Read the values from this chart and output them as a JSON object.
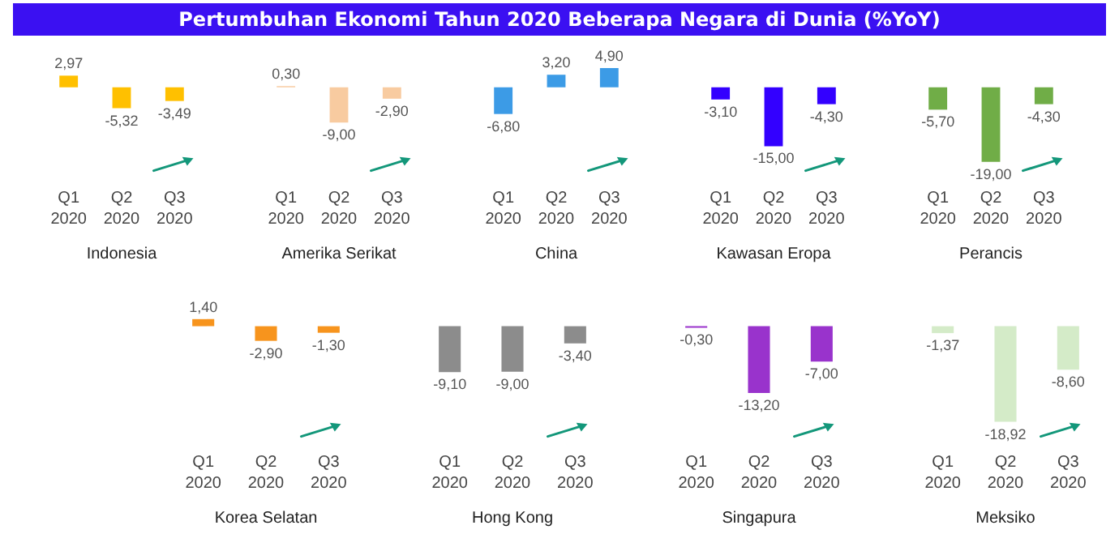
{
  "chart_data": [
    {
      "type": "bar",
      "xlabel": "Indonesia",
      "categories": [
        "Q1 2020",
        "Q2 2020",
        "Q3 2020"
      ],
      "values": [
        2.97,
        -5.32,
        -3.49
      ],
      "value_labels": [
        "2,97",
        "-5,32",
        "-3,49"
      ],
      "color": "#ffc000"
    },
    {
      "type": "bar",
      "xlabel": "Amerika Serikat",
      "categories": [
        "Q1 2020",
        "Q2 2020",
        "Q3 2020"
      ],
      "values": [
        0.3,
        -9.0,
        -2.9
      ],
      "value_labels": [
        "0,30",
        "-9,00",
        "-2,90"
      ],
      "color": "#f8cba0"
    },
    {
      "type": "bar",
      "title": "Pertumbuhan Ekonomi Tahun 2020 Beberapa Negara di Dunia (%YoY)",
      "xlabel": "China",
      "categories": [
        "Q1 2020",
        "Q2 2020",
        "Q3 2020"
      ],
      "values": [
        -6.8,
        3.2,
        4.9
      ],
      "value_labels": [
        "-6,80",
        "3,20",
        "4,90"
      ],
      "color": "#3c9be6"
    },
    {
      "type": "bar",
      "xlabel": "Kawasan Eropa",
      "categories": [
        "Q1 2020",
        "Q2 2020",
        "Q3 2020"
      ],
      "values": [
        -3.1,
        -15.0,
        -4.3
      ],
      "value_labels": [
        "-3,10",
        "-15,00",
        "-4,30"
      ],
      "color": "#3300ff"
    },
    {
      "type": "bar",
      "xlabel": "Perancis",
      "categories": [
        "Q1 2020",
        "Q2 2020",
        "Q3 2020"
      ],
      "values": [
        -5.7,
        -19.0,
        -4.3
      ],
      "value_labels": [
        "-5,70",
        "-19,00",
        "-4,30"
      ],
      "color": "#70ad47"
    },
    {
      "type": "bar",
      "xlabel": "Korea Selatan",
      "categories": [
        "Q1 2020",
        "Q2 2020",
        "Q3 2020"
      ],
      "values": [
        1.4,
        -2.9,
        -1.3
      ],
      "value_labels": [
        "1,40",
        "-2,90",
        "-1,30"
      ],
      "color": "#f7941d"
    },
    {
      "type": "bar",
      "xlabel": "Hong Kong",
      "categories": [
        "Q1 2020",
        "Q2 2020",
        "Q3 2020"
      ],
      "values": [
        -9.1,
        -9.0,
        -3.4
      ],
      "value_labels": [
        "-9,10",
        "-9,00",
        "-3,40"
      ],
      "color": "#8c8c8c"
    },
    {
      "type": "bar",
      "xlabel": "Singapura",
      "categories": [
        "Q1 2020",
        "Q2 2020",
        "Q3 2020"
      ],
      "values": [
        -0.3,
        -13.2,
        -7.0
      ],
      "value_labels": [
        "-0,30",
        "-13,20",
        "-7,00"
      ],
      "color": "#9933cc"
    },
    {
      "type": "bar",
      "xlabel": "Meksiko",
      "categories": [
        "Q1 2020",
        "Q2 2020",
        "Q3 2020"
      ],
      "values": [
        -1.37,
        -18.92,
        -8.6
      ],
      "value_labels": [
        "-1,37",
        "-18,92",
        "-8,60"
      ],
      "color": "#d4ebc8"
    }
  ]
}
